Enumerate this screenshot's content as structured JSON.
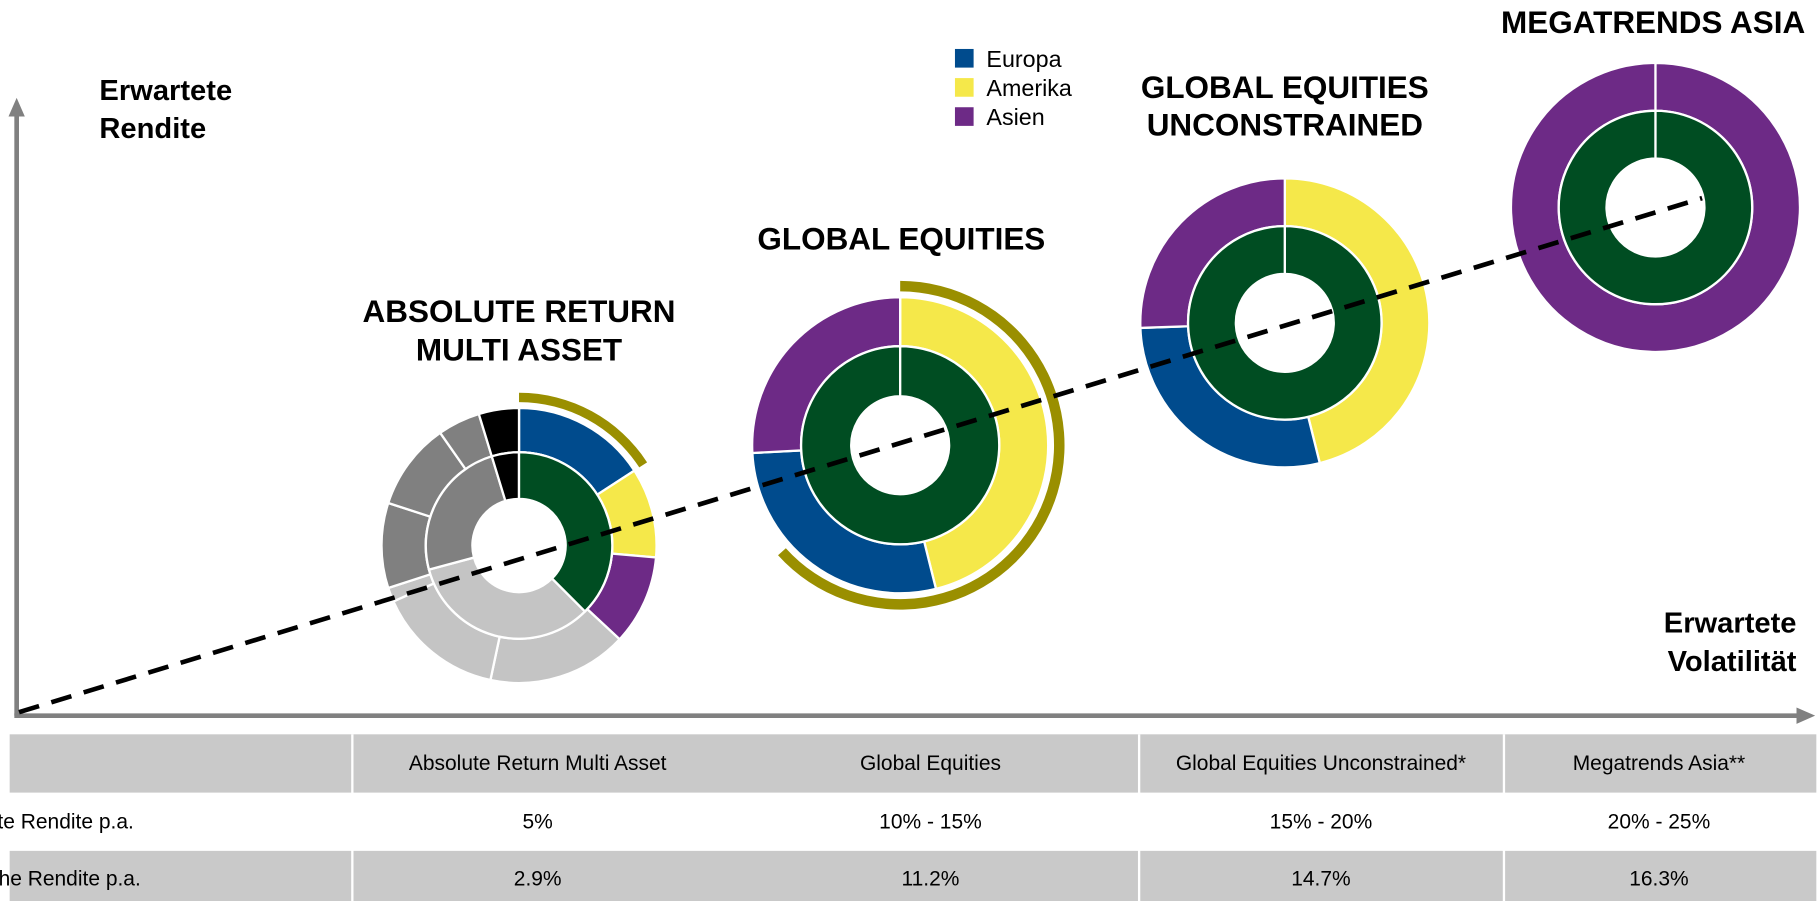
{
  "axis": {
    "y_label": [
      "Erwartete",
      "Rendite"
    ],
    "x_label": [
      "Erwartete",
      "Volatilität"
    ]
  },
  "legend": [
    "Europa",
    "Amerika",
    "Asien"
  ],
  "funds": [
    {
      "title": [
        "ABSOLUTE RETURN",
        "MULTI ASSET"
      ]
    },
    {
      "title": [
        "GLOBAL EQUITIES"
      ]
    },
    {
      "title": [
        "GLOBAL EQUITIES",
        "UNCONSTRAINED"
      ]
    },
    {
      "title": [
        "MEGATRENDS ASIA"
      ]
    }
  ],
  "table": {
    "header": [
      "",
      "Absolute Return Multi Asset",
      "Global Equities",
      "Global Equities Unconstrained*",
      "Megatrends Asia**"
    ],
    "rows": [
      [
        "Erwartete Rendite p.a.",
        "5%",
        "10% - 15%",
        "15% - 20%",
        "20% - 25%"
      ],
      [
        "Historische Rendite p.a.",
        "2.9%",
        "11.2%",
        "14.7%",
        "16.3%"
      ]
    ]
  }
}
